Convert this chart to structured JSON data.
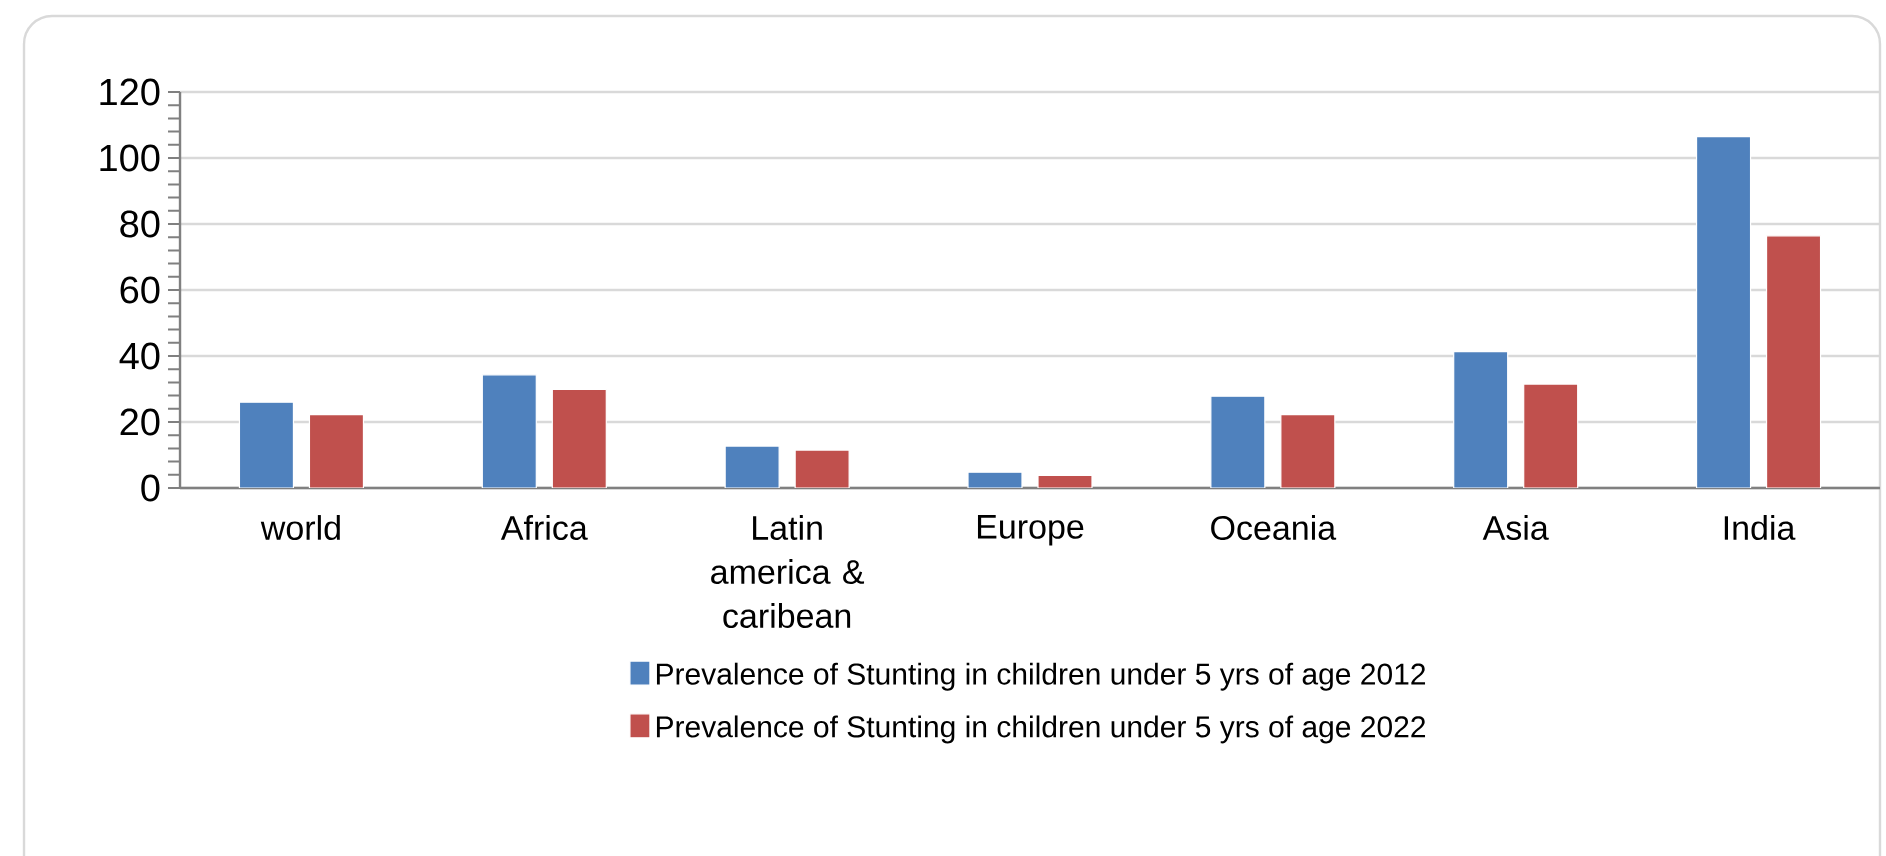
{
  "chart_data": {
    "type": "bar",
    "categories": [
      "world",
      "Africa",
      "Latin america & caribean",
      "Europe",
      "Oceania",
      "Asia",
      "India"
    ],
    "series": [
      {
        "name": "Prevalence of Stunting in children under 5 yrs of age 2012",
        "color": "#4f81bd",
        "values": [
          26,
          34.3,
          12.7,
          4.8,
          27.8,
          41.3,
          106.5
        ]
      },
      {
        "name": "Prevalence of Stunting in children under 5 yrs of age 2022",
        "color": "#c0504d",
        "values": [
          22.2,
          29.9,
          11.5,
          3.8,
          22.2,
          31.5,
          76.4
        ]
      }
    ],
    "ylim": [
      0,
      120
    ],
    "yticks": [
      0,
      20,
      40,
      60,
      80,
      100,
      120
    ],
    "grid": "y",
    "legend": "bottom"
  }
}
